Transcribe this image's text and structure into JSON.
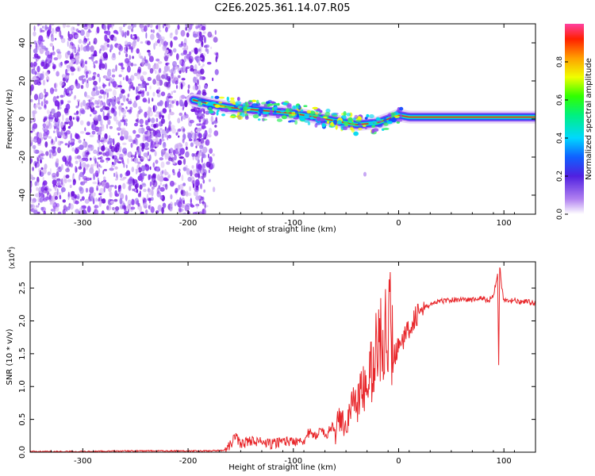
{
  "title": "C2E6.2025.361.14.07.R05",
  "colors": {
    "snr_line": "#e8262a",
    "spectrogram_noise": "#7a1fe8",
    "spectrogram_faint": "#d6b8f2",
    "signal_core": "#e8262a",
    "axis": "#000000"
  },
  "chart_data": [
    {
      "type": "heatmap",
      "name": "spectrogram",
      "xlabel": "Height of straight line (km)",
      "ylabel": "Frequency (Hz)",
      "xlim": [
        -350,
        130
      ],
      "ylim": [
        -50,
        50
      ],
      "xticks": [
        -300,
        -200,
        -100,
        0,
        100
      ],
      "xtick_labels": [
        "-300",
        "-200",
        "-100",
        "0",
        "100"
      ],
      "yticks": [
        -40,
        -20,
        0,
        20,
        40
      ],
      "ytick_labels": [
        "-40",
        "-20",
        "0",
        "20",
        "40"
      ],
      "noise_region_x": [
        -350,
        -175
      ],
      "signal_track": {
        "x": [
          -195,
          -180,
          -160,
          -140,
          -120,
          -100,
          -80,
          -60,
          -40,
          -20,
          -10,
          0,
          10,
          20,
          40,
          60,
          80,
          100,
          130
        ],
        "y": [
          10,
          8,
          6,
          5,
          4,
          3,
          1,
          -1,
          -3,
          -2,
          0,
          2,
          1,
          1,
          1,
          1,
          1,
          1,
          1
        ]
      },
      "colorbar": {
        "label": "Normalized spectral amplitude",
        "range": [
          0,
          1
        ],
        "ticks": [
          0.0,
          0.2,
          0.4,
          0.6,
          0.8
        ],
        "tick_labels": [
          "0.0",
          "0.2",
          "0.4",
          "0.6",
          "0.8"
        ]
      }
    },
    {
      "type": "line",
      "name": "snr",
      "xlabel": "Height of straight line (km)",
      "ylabel": "SNR (10 * v/v)",
      "y_multiplier": "(x10",
      "y_multiplier_exp": "4",
      "xlim": [
        -350,
        130
      ],
      "ylim": [
        0,
        2.9
      ],
      "xticks": [
        -300,
        -200,
        -100,
        0,
        100
      ],
      "xtick_labels": [
        "-300",
        "-200",
        "-100",
        "0",
        "100"
      ],
      "yticks": [
        0.0,
        0.5,
        1.0,
        1.5,
        2.0,
        2.5
      ],
      "ytick_labels": [
        "0.0",
        "0.5",
        "1.0",
        "1.5",
        "2.0",
        "2.5"
      ],
      "series": [
        {
          "name": "SNR",
          "x": [
            -350,
            -300,
            -250,
            -200,
            -180,
            -165,
            -160,
            -155,
            -150,
            -140,
            -130,
            -120,
            -110,
            -100,
            -95,
            -90,
            -85,
            -80,
            -75,
            -70,
            -65,
            -60,
            -55,
            -50,
            -45,
            -40,
            -35,
            -30,
            -25,
            -20,
            -15,
            -12,
            -10,
            -8,
            -5,
            -2,
            0,
            2,
            5,
            10,
            15,
            20,
            25,
            30,
            40,
            50,
            60,
            70,
            80,
            85,
            90,
            92,
            94,
            95,
            96,
            98,
            100,
            105,
            110,
            115,
            120,
            125,
            130
          ],
          "y": [
            0.01,
            0.01,
            0.02,
            0.02,
            0.02,
            0.03,
            0.1,
            0.25,
            0.12,
            0.18,
            0.15,
            0.12,
            0.18,
            0.15,
            0.2,
            0.18,
            0.3,
            0.22,
            0.35,
            0.25,
            0.35,
            0.4,
            0.5,
            0.4,
            0.7,
            0.8,
            0.9,
            1.0,
            1.3,
            1.6,
            1.8,
            2.2,
            1.7,
            2.0,
            1.5,
            1.5,
            1.7,
            1.8,
            1.7,
            1.9,
            2.05,
            2.15,
            2.2,
            2.25,
            2.3,
            2.32,
            2.33,
            2.32,
            2.35,
            2.3,
            2.4,
            2.55,
            2.7,
            1.35,
            2.85,
            2.5,
            2.3,
            2.3,
            2.32,
            2.28,
            2.3,
            2.28,
            2.27
          ]
        }
      ]
    }
  ]
}
